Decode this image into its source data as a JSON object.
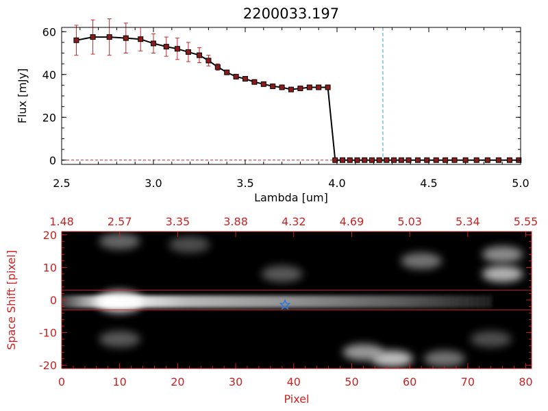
{
  "chart_data": [
    {
      "type": "line",
      "title": "2200033.197",
      "xlabel": "Lambda [um]",
      "ylabel": "Flux [mJy]",
      "xlim": [
        2.5,
        5.0
      ],
      "ylim": [
        -2,
        62
      ],
      "xticks": [
        "2.5",
        "3.0",
        "3.5",
        "4.0",
        "4.5",
        "5.0"
      ],
      "yticks": [
        "0",
        "20",
        "40",
        "60"
      ],
      "series": [
        {
          "name": "flux",
          "color": "#000000",
          "marker_color": "#8b1a1a",
          "errorbar_color": "#cc2222",
          "x": [
            2.58,
            2.67,
            2.76,
            2.85,
            2.93,
            3.0,
            3.07,
            3.13,
            3.19,
            3.25,
            3.3,
            3.35,
            3.4,
            3.45,
            3.5,
            3.55,
            3.6,
            3.65,
            3.7,
            3.75,
            3.8,
            3.85,
            3.9,
            3.95,
            3.99,
            4.03,
            4.07,
            4.11,
            4.15,
            4.19,
            4.23,
            4.27,
            4.31,
            4.35,
            4.39,
            4.44,
            4.49,
            4.54,
            4.59,
            4.64,
            4.7,
            4.76,
            4.82,
            4.88,
            4.94,
            4.99
          ],
          "y": [
            56,
            57.5,
            57.5,
            57,
            56.5,
            54.5,
            53,
            52,
            50.5,
            49,
            46.5,
            43.5,
            41,
            39,
            38,
            36.5,
            35.5,
            34.5,
            34,
            33,
            33.5,
            34,
            34,
            34,
            0,
            0,
            0,
            0,
            0,
            0,
            0,
            0,
            0,
            0,
            0,
            0,
            0,
            0,
            0,
            0,
            0,
            0,
            0,
            0,
            0,
            0
          ],
          "err": [
            7,
            8,
            8.5,
            7,
            5.5,
            4.5,
            4.5,
            5,
            4.5,
            3.5,
            2.5,
            1.5,
            1,
            1,
            1,
            1,
            1,
            1,
            1,
            1,
            1,
            1,
            1,
            1,
            0,
            0,
            0,
            0,
            0,
            0,
            0,
            0,
            0,
            0,
            0,
            0,
            0,
            0,
            0,
            0,
            0,
            0,
            0,
            0,
            0,
            0
          ]
        }
      ],
      "vline": {
        "x": 4.25,
        "color": "#3aa6b9",
        "style": "dashed"
      },
      "hline": {
        "y": 0,
        "color": "#cc2222",
        "style": "dashed"
      }
    },
    {
      "type": "heatmap",
      "title": "",
      "xlabel": "Pixel",
      "ylabel": "Space Shift [pixel]",
      "xlim": [
        0,
        81
      ],
      "ylim": [
        -21,
        21
      ],
      "xticks": [
        "0",
        "10",
        "20",
        "30",
        "40",
        "50",
        "60",
        "70",
        "80"
      ],
      "yticks": [
        "-20",
        "-10",
        "0",
        "10",
        "20"
      ],
      "top_axis_label_values": [
        "1.48",
        "2.57",
        "3.35",
        "3.88",
        "4.32",
        "4.69",
        "5.03",
        "5.34",
        "5.55"
      ],
      "axis_color": "#cc2222",
      "colormap": "grayscale",
      "extraction_lines_y": [
        3,
        -3
      ],
      "trace": {
        "y": -0.5,
        "peak_x": 10,
        "fade_x": 70
      },
      "blobs": [
        {
          "x": 10,
          "y": 18,
          "intensity": 0.4
        },
        {
          "x": 22,
          "y": 17,
          "intensity": 0.3
        },
        {
          "x": 10,
          "y": -12,
          "intensity": 0.35
        },
        {
          "x": 38,
          "y": 8,
          "intensity": 0.35
        },
        {
          "x": 62,
          "y": 12,
          "intensity": 0.45
        },
        {
          "x": 76,
          "y": 14,
          "intensity": 0.55
        },
        {
          "x": 76,
          "y": 8,
          "intensity": 0.7
        },
        {
          "x": 52,
          "y": -16,
          "intensity": 0.6
        },
        {
          "x": 57,
          "y": -18,
          "intensity": 0.75
        },
        {
          "x": 66,
          "y": -18,
          "intensity": 0.45
        },
        {
          "x": 74,
          "y": -12,
          "intensity": 0.3
        }
      ],
      "marker": {
        "x": 38.5,
        "y": -1.5,
        "color": "#2b7bd9",
        "shape": "star"
      }
    }
  ]
}
